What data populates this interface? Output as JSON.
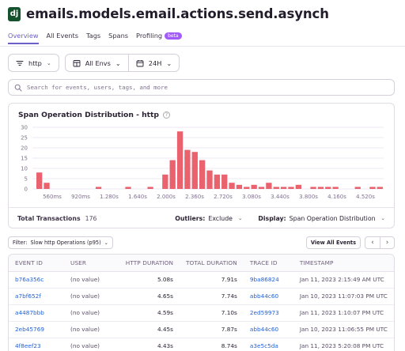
{
  "header": {
    "logo_text": "dj",
    "title": "emails.models.email.actions.send.asynch"
  },
  "tabs": [
    {
      "label": "Overview",
      "active": true
    },
    {
      "label": "All Events",
      "active": false
    },
    {
      "label": "Tags",
      "active": false
    },
    {
      "label": "Spans",
      "active": false
    },
    {
      "label": "Profiling",
      "active": false,
      "badge": "beta"
    }
  ],
  "controls": {
    "op_filter": "http",
    "environment": "All Envs",
    "period": "24H"
  },
  "search": {
    "placeholder": "Search for events, users, tags, and more"
  },
  "chart_card": {
    "title": "Span Operation Distribution - http",
    "footer": {
      "total_label": "Total Transactions",
      "total_value": "176",
      "outliers_label": "Outliers:",
      "outliers_value": "Exclude",
      "display_label": "Display:",
      "display_value": "Span Operation Distribution"
    }
  },
  "chart_data": {
    "type": "bar",
    "title": "Span Operation Distribution - http",
    "color": "#e9626e",
    "ylim": [
      0,
      30
    ],
    "yticks": [
      0,
      5,
      10,
      15,
      20,
      25,
      30
    ],
    "grid": true,
    "xtick_labels": [
      "560ms",
      "920ms",
      "1.280s",
      "1.640s",
      "2.000s",
      "2.360s",
      "2.720s",
      "3.080s",
      "3.440s",
      "3.800s",
      "4.160s",
      "4.520s"
    ],
    "values": [
      8,
      3,
      0,
      0,
      0,
      0,
      0,
      0,
      1,
      0,
      0,
      0,
      1,
      0,
      0,
      1,
      0,
      7,
      14,
      28,
      19,
      18,
      14,
      9,
      7,
      7,
      3,
      2,
      1,
      2,
      1,
      3,
      1,
      1,
      1,
      2,
      0,
      1,
      1,
      1,
      1,
      0,
      0,
      1,
      0,
      1,
      1
    ]
  },
  "filter": {
    "label": "Filter:",
    "value": "Slow http Operations (p95)",
    "view_all": "View All Events"
  },
  "table": {
    "columns": [
      "EVENT ID",
      "USER",
      "HTTP DURATION",
      "TOTAL DURATION",
      "TRACE ID",
      "TIMESTAMP"
    ],
    "rows": [
      {
        "event_id": "b76a356c",
        "user": "(no value)",
        "http_duration": "5.08s",
        "total_duration": "7.91s",
        "trace_id": "9ba86824",
        "timestamp": "Jan 11, 2023 2:15:49 AM UTC"
      },
      {
        "event_id": "a7bf652f",
        "user": "(no value)",
        "http_duration": "4.65s",
        "total_duration": "7.74s",
        "trace_id": "abb44c60",
        "timestamp": "Jan 10, 2023 11:07:03 PM UTC"
      },
      {
        "event_id": "a4487bbb",
        "user": "(no value)",
        "http_duration": "4.59s",
        "total_duration": "7.10s",
        "trace_id": "2ed59973",
        "timestamp": "Jan 11, 2023 1:10:07 PM UTC"
      },
      {
        "event_id": "2eb45769",
        "user": "(no value)",
        "http_duration": "4.45s",
        "total_duration": "7.87s",
        "trace_id": "abb44c60",
        "timestamp": "Jan 10, 2023 11:06:55 PM UTC"
      },
      {
        "event_id": "4f8eef23",
        "user": "(no value)",
        "http_duration": "4.43s",
        "total_duration": "8.74s",
        "trace_id": "a3e5c5da",
        "timestamp": "Jan 11, 2023 5:20:08 PM UTC"
      }
    ]
  },
  "icons": {
    "filter": "filter-lines-icon",
    "env": "calendar-grid-icon",
    "period": "calendar-icon",
    "search": "magnifier-icon",
    "help": "question-circle-icon"
  }
}
